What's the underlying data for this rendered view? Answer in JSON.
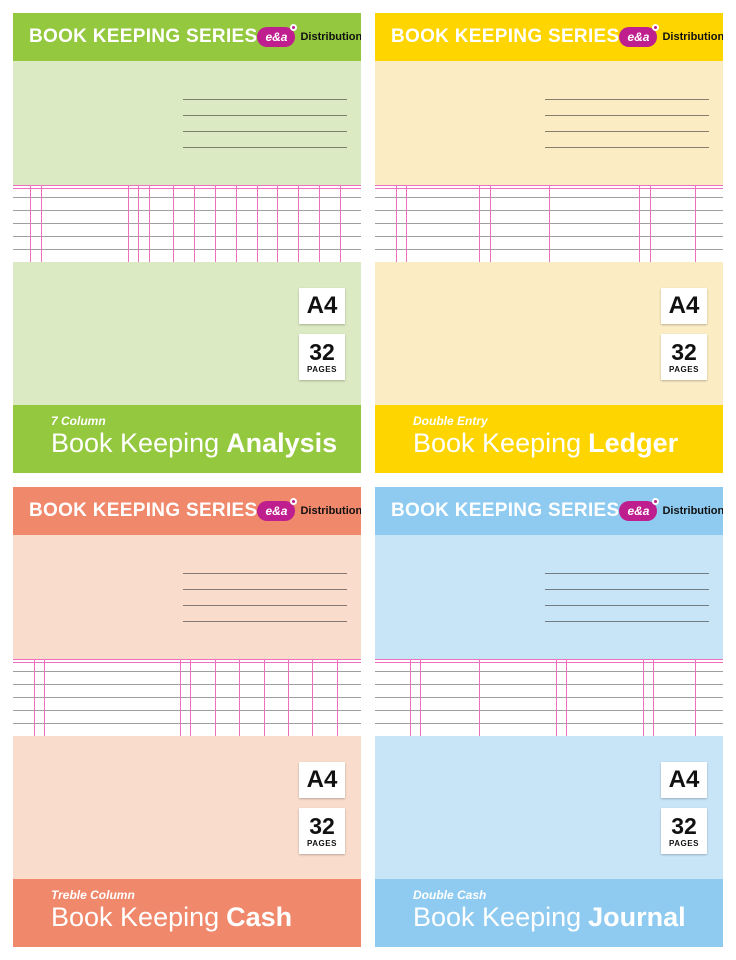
{
  "shared": {
    "series_title": "BOOK KEEPING SERIES",
    "logo_text": "e&a",
    "distributor_label": "Distribution",
    "size_badge": "A4",
    "pages_count": "32",
    "pages_label": "PAGES",
    "colors": {
      "logo": "#BE1E8E",
      "ruling_pink": "#EE6FC0"
    }
  },
  "covers": [
    {
      "name": "analysis",
      "subtitle": "7 Column",
      "title_prefix": "Book Keeping",
      "title_emphasis": "Analysis",
      "colors": {
        "accent": "#93C83F",
        "panel": "#DBEAC2"
      },
      "ledger_columns": [
        5,
        8,
        33,
        36,
        39,
        46,
        52,
        58,
        64,
        70,
        76,
        82,
        88,
        94
      ]
    },
    {
      "name": "ledger",
      "subtitle": "Double Entry",
      "title_prefix": "Book Keeping",
      "title_emphasis": "Ledger",
      "colors": {
        "accent": "#FFD500",
        "panel": "#FBECC4"
      },
      "ledger_columns": [
        6,
        9,
        30,
        33,
        50,
        76,
        79,
        92
      ]
    },
    {
      "name": "cash",
      "subtitle": "Treble Column",
      "title_prefix": "Book Keeping",
      "title_emphasis": "Cash",
      "colors": {
        "accent": "#F0886B",
        "panel": "#F9DCCC"
      },
      "ledger_columns": [
        6,
        9,
        48,
        51,
        58,
        65,
        72,
        79,
        86,
        93
      ]
    },
    {
      "name": "journal",
      "subtitle": "Double Cash",
      "title_prefix": "Book Keeping",
      "title_emphasis": "Journal",
      "colors": {
        "accent": "#8FCBF0",
        "panel": "#C8E5F8"
      },
      "ledger_columns": [
        10,
        13,
        30,
        52,
        55,
        77,
        80,
        92
      ]
    }
  ]
}
